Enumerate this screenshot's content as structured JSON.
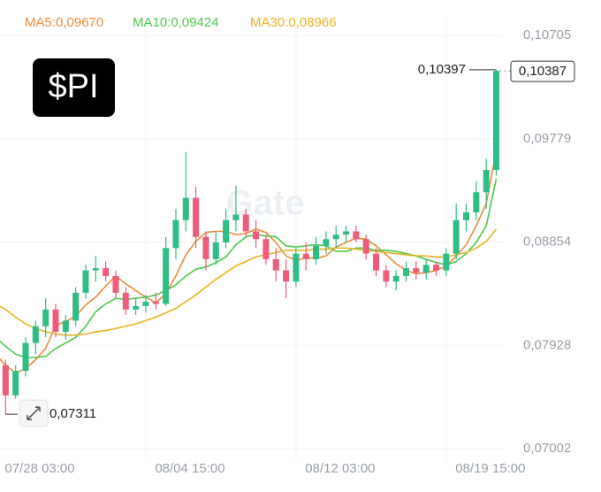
{
  "chart_data": {
    "type": "candlestick",
    "badge": "$PI",
    "watermark": "Gate",
    "categories": [
      "07/28 03:00",
      null,
      null,
      null,
      null,
      null,
      null,
      null,
      null,
      null,
      null,
      null,
      null,
      null,
      null,
      "08/04 15:00",
      null,
      null,
      null,
      null,
      null,
      null,
      null,
      null,
      null,
      null,
      null,
      null,
      null,
      null,
      "08/12 03:00",
      null,
      null,
      null,
      null,
      null,
      null,
      null,
      null,
      null,
      null,
      null,
      null,
      null,
      null,
      "08/19 15:00",
      null,
      null,
      null,
      null,
      null
    ],
    "open": [
      0.079,
      0.0775,
      0.0748,
      0.077,
      0.0795,
      0.081,
      0.0825,
      0.0805,
      0.0815,
      0.084,
      0.086,
      0.0862,
      0.0855,
      0.084,
      0.0825,
      0.0828,
      0.0832,
      0.083,
      0.088,
      0.0905,
      0.0925,
      0.089,
      0.087,
      0.0885,
      0.0905,
      0.091,
      0.0895,
      0.0888,
      0.087,
      0.086,
      0.085,
      0.0875,
      0.087,
      0.0882,
      0.0888,
      0.0892,
      0.0895,
      0.0888,
      0.0875,
      0.086,
      0.085,
      0.0855,
      0.0862,
      0.0858,
      0.0865,
      0.086,
      0.0875,
      0.0905,
      0.0912,
      0.093,
      0.095
    ],
    "high": [
      0.0795,
      0.078,
      0.0775,
      0.08,
      0.0815,
      0.0835,
      0.083,
      0.082,
      0.0845,
      0.0865,
      0.0873,
      0.0868,
      0.086,
      0.0845,
      0.0835,
      0.0838,
      0.084,
      0.089,
      0.0915,
      0.0966,
      0.0935,
      0.0895,
      0.0895,
      0.0915,
      0.0936,
      0.0915,
      0.0905,
      0.0892,
      0.088,
      0.087,
      0.088,
      0.0885,
      0.089,
      0.0895,
      0.09,
      0.09,
      0.09,
      0.0892,
      0.088,
      0.0865,
      0.086,
      0.0868,
      0.0868,
      0.087,
      0.0868,
      0.088,
      0.092,
      0.092,
      0.094,
      0.096,
      0.10397
    ],
    "low": [
      0.077,
      0.07311,
      0.0745,
      0.0765,
      0.0785,
      0.08,
      0.08,
      0.0798,
      0.081,
      0.0835,
      0.085,
      0.085,
      0.0835,
      0.082,
      0.082,
      0.0822,
      0.0825,
      0.0828,
      0.087,
      0.0895,
      0.088,
      0.086,
      0.0865,
      0.088,
      0.0895,
      0.089,
      0.088,
      0.0865,
      0.085,
      0.0835,
      0.0845,
      0.086,
      0.0865,
      0.0875,
      0.088,
      0.0885,
      0.0885,
      0.087,
      0.0855,
      0.0845,
      0.0842,
      0.085,
      0.0852,
      0.0852,
      0.0855,
      0.0855,
      0.087,
      0.0895,
      0.0905,
      0.0915,
      0.0945
    ],
    "close": [
      0.0775,
      0.0748,
      0.077,
      0.0795,
      0.081,
      0.0825,
      0.0805,
      0.0815,
      0.084,
      0.086,
      0.0862,
      0.0855,
      0.084,
      0.0825,
      0.0828,
      0.0832,
      0.083,
      0.088,
      0.0905,
      0.0925,
      0.089,
      0.087,
      0.0885,
      0.0905,
      0.091,
      0.0895,
      0.0888,
      0.087,
      0.086,
      0.085,
      0.0875,
      0.087,
      0.0882,
      0.0888,
      0.0892,
      0.0895,
      0.0888,
      0.0875,
      0.086,
      0.085,
      0.0855,
      0.0862,
      0.0858,
      0.0865,
      0.086,
      0.0875,
      0.0905,
      0.0912,
      0.093,
      0.095,
      0.10387
    ],
    "up_color": "#2ebd85",
    "down_color": "#ef5b7b",
    "series": [
      {
        "name": "MA5:0,09670",
        "color": "#f08a3a",
        "values": [
          0.0785,
          0.0775,
          0.0768,
          0.0772,
          0.078,
          0.079,
          0.0811,
          0.0814,
          0.0819,
          0.0829,
          0.0836,
          0.0846,
          0.0855,
          0.0848,
          0.0842,
          0.0836,
          0.0831,
          0.0839,
          0.0855,
          0.0874,
          0.0886,
          0.0894,
          0.0895,
          0.0895,
          0.0892,
          0.0893,
          0.0897,
          0.0894,
          0.0885,
          0.0873,
          0.0869,
          0.0871,
          0.0871,
          0.0873,
          0.0881,
          0.0885,
          0.0889,
          0.0888,
          0.0882,
          0.0874,
          0.0866,
          0.086,
          0.0857,
          0.0858,
          0.086,
          0.0864,
          0.0873,
          0.0883,
          0.09,
          0.092,
          0.0967
        ]
      },
      {
        "name": "MA10:0,09424",
        "color": "#4cc94c",
        "values": [
          0.08,
          0.0792,
          0.0785,
          0.0782,
          0.0782,
          0.0783,
          0.079,
          0.0795,
          0.08,
          0.081,
          0.0823,
          0.083,
          0.0835,
          0.0834,
          0.0835,
          0.0836,
          0.0838,
          0.0842,
          0.0847,
          0.0855,
          0.0861,
          0.0863,
          0.0867,
          0.0872,
          0.0883,
          0.089,
          0.0892,
          0.0891,
          0.089,
          0.0882,
          0.0881,
          0.0882,
          0.0883,
          0.0882,
          0.0877,
          0.0877,
          0.088,
          0.088,
          0.0878,
          0.0878,
          0.0877,
          0.0875,
          0.0873,
          0.087,
          0.0867,
          0.0865,
          0.0868,
          0.0875,
          0.0885,
          0.09,
          0.0942
        ]
      },
      {
        "name": "MA30:0,08966",
        "color": "#e6b422",
        "values": [
          0.083,
          0.0825,
          0.0818,
          0.0812,
          0.0808,
          0.0805,
          0.0803,
          0.0802,
          0.0802,
          0.0803,
          0.0805,
          0.0806,
          0.0808,
          0.081,
          0.0812,
          0.0815,
          0.0818,
          0.0822,
          0.0826,
          0.0832,
          0.0838,
          0.0845,
          0.0852,
          0.0858,
          0.0864,
          0.0868,
          0.0872,
          0.0874,
          0.0876,
          0.0878,
          0.0878,
          0.0878,
          0.0879,
          0.0879,
          0.088,
          0.088,
          0.0879,
          0.0878,
          0.0877,
          0.0876,
          0.0875,
          0.0874,
          0.0873,
          0.0873,
          0.0872,
          0.0872,
          0.0874,
          0.0876,
          0.088,
          0.0886,
          0.0897
        ]
      }
    ],
    "high_label": {
      "value": 0.10397,
      "label": "0,10397"
    },
    "low_label": {
      "value": 0.07311,
      "label": "0,07311"
    },
    "last_price": {
      "value": 0.10387,
      "label": "0,10387"
    },
    "ylim": [
      0.069,
      0.1086
    ],
    "yticks": [
      {
        "value": 0.07002,
        "label": "0,07002"
      },
      {
        "value": 0.07928,
        "label": "0,07928"
      },
      {
        "value": 0.08854,
        "label": "0,08854"
      },
      {
        "value": 0.09779,
        "label": "0,09779"
      },
      {
        "value": 0.10705,
        "label": "0,10705"
      }
    ],
    "grid": true
  }
}
